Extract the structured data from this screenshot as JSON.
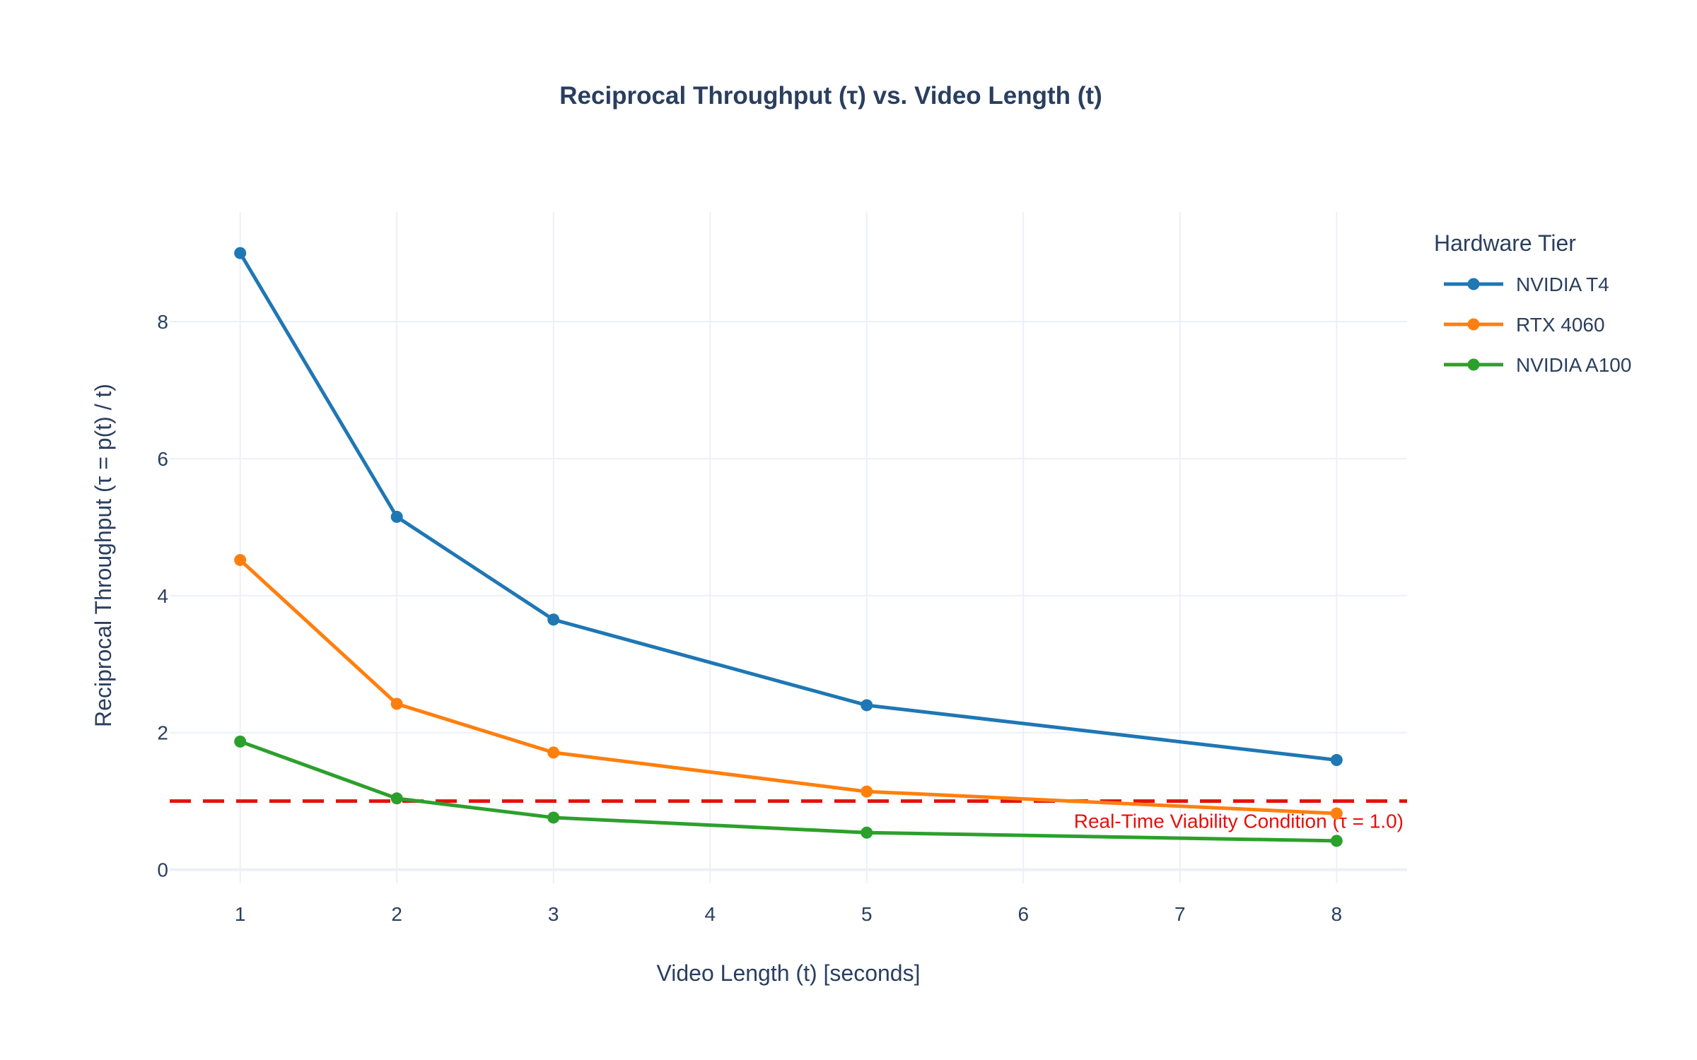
{
  "chart_data": {
    "type": "line",
    "title": "Reciprocal Throughput (τ) vs. Video Length (t)",
    "xlabel": "Video Length (t) [seconds]",
    "ylabel": "Reciprocal Throughput (τ = p(t) / t)",
    "x_ticks": [
      1,
      2,
      3,
      4,
      5,
      6,
      7,
      8
    ],
    "y_ticks": [
      0,
      2,
      4,
      6,
      8
    ],
    "xlim": [
      0.55,
      8.45
    ],
    "ylim": [
      -0.2,
      9.6
    ],
    "grid": true,
    "legend": {
      "title": "Hardware Tier",
      "placement": "top-right, outside plot"
    },
    "series": [
      {
        "name": "NVIDIA T4",
        "color": "#1f77b4",
        "x": [
          1,
          2,
          3,
          5,
          8
        ],
        "y": [
          9.0,
          5.15,
          3.65,
          2.4,
          1.6
        ]
      },
      {
        "name": "RTX 4060",
        "color": "#ff7f0e",
        "x": [
          1,
          2,
          3,
          5,
          8
        ],
        "y": [
          4.52,
          2.42,
          1.71,
          1.14,
          0.82
        ]
      },
      {
        "name": "NVIDIA A100",
        "color": "#2ca02c",
        "x": [
          1,
          2,
          3,
          5,
          8
        ],
        "y": [
          1.87,
          1.04,
          0.76,
          0.54,
          0.42
        ]
      }
    ],
    "threshold": {
      "y": 1.0,
      "color": "#e3120b",
      "style": "dashed",
      "label": "Real-Time Viability Condition (τ = 1.0)"
    }
  }
}
